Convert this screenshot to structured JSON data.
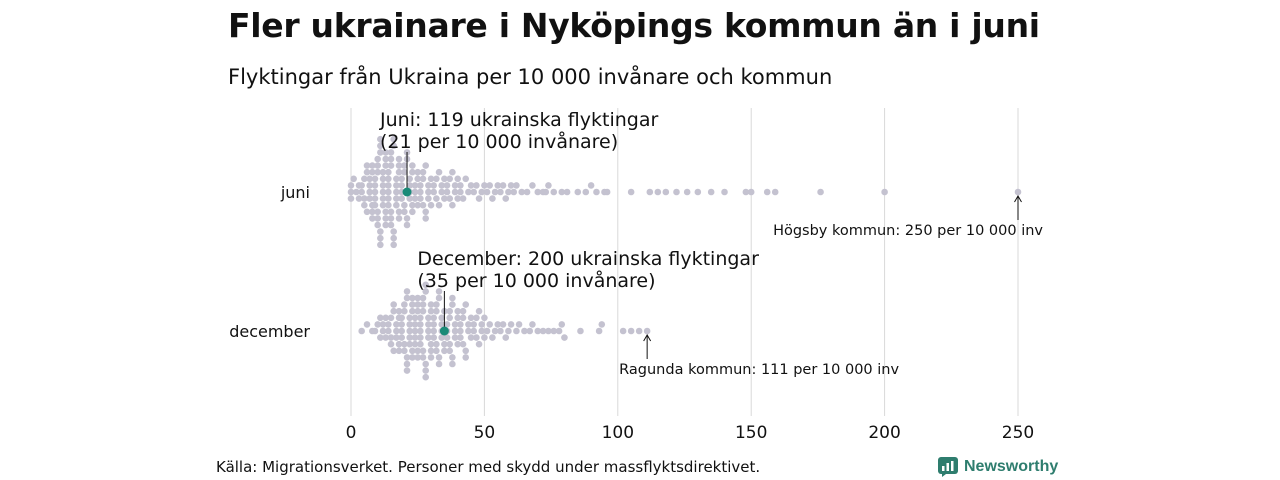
{
  "title": "Fler ukrainare i Nyköpings kommun än i juni",
  "subtitle": "Flyktingar från Ukraina per 10 000 invånare och kommun",
  "footer": "Källa: Migrationsverket. Personer med skydd under massflyktsdirektivet.",
  "brand": {
    "name": "Newsworthy",
    "color": "#2e7d6e"
  },
  "colors": {
    "dot": "#c4c2d0",
    "highlight": "#1a8a78",
    "grid": "#d9d9d9",
    "text": "#111111"
  },
  "chart_data": {
    "type": "scatter",
    "subtype": "beeswarm",
    "xlim": [
      0,
      250
    ],
    "xticks": [
      0,
      50,
      100,
      150,
      200,
      250
    ],
    "grid": "vertical",
    "categories": [
      "juni",
      "december"
    ],
    "series": [
      {
        "name": "juni",
        "highlight": {
          "value": 21,
          "label_line1": "Juni: 119 ukrainska flyktingar",
          "label_line2": "(21 per 10 000 invånare)"
        },
        "max": {
          "value": 250,
          "label": "Högsby kommun: 250 per 10 000 inv"
        },
        "values": [
          0,
          0,
          0,
          1,
          2,
          3,
          3,
          4,
          4,
          5,
          5,
          5,
          6,
          6,
          6,
          7,
          7,
          7,
          7,
          8,
          8,
          8,
          8,
          8,
          9,
          9,
          9,
          9,
          9,
          10,
          10,
          10,
          10,
          10,
          10,
          11,
          11,
          11,
          11,
          11,
          11,
          12,
          12,
          12,
          12,
          12,
          12,
          13,
          13,
          13,
          13,
          13,
          13,
          14,
          14,
          14,
          14,
          14,
          14,
          15,
          15,
          15,
          15,
          15,
          15,
          16,
          16,
          16,
          16,
          16,
          17,
          17,
          17,
          17,
          17,
          18,
          18,
          18,
          18,
          18,
          19,
          19,
          19,
          19,
          20,
          20,
          20,
          20,
          21,
          21,
          21,
          21,
          22,
          22,
          22,
          22,
          23,
          23,
          23,
          23,
          24,
          24,
          24,
          25,
          25,
          25,
          26,
          26,
          26,
          27,
          27,
          27,
          28,
          28,
          28,
          29,
          29,
          29,
          30,
          30,
          31,
          31,
          32,
          32,
          33,
          33,
          34,
          34,
          35,
          35,
          36,
          36,
          37,
          37,
          38,
          38,
          39,
          39,
          40,
          40,
          41,
          41,
          42,
          43,
          44,
          45,
          46,
          47,
          48,
          49,
          50,
          51,
          52,
          53,
          54,
          55,
          56,
          57,
          58,
          59,
          60,
          61,
          62,
          64,
          66,
          68,
          70,
          72,
          74,
          73,
          76,
          79,
          81,
          85,
          88,
          90,
          92,
          95,
          96,
          105,
          112,
          115,
          118,
          122,
          126,
          130,
          135,
          140,
          148,
          150,
          156,
          159,
          176,
          200,
          250
        ]
      },
      {
        "name": "december",
        "highlight": {
          "value": 35,
          "label_line1": "December: 200 ukrainska flyktingar",
          "label_line2": "(35 per 10 000 invånare)"
        },
        "max": {
          "value": 111,
          "label": "Ragunda kommun: 111 per 10 000 inv"
        },
        "values": [
          4,
          6,
          8,
          9,
          10,
          11,
          11,
          12,
          12,
          13,
          13,
          14,
          14,
          15,
          15,
          15,
          16,
          16,
          16,
          17,
          17,
          17,
          18,
          18,
          18,
          18,
          19,
          19,
          19,
          19,
          20,
          20,
          20,
          20,
          21,
          21,
          21,
          21,
          21,
          22,
          22,
          22,
          22,
          22,
          23,
          23,
          23,
          23,
          23,
          24,
          24,
          24,
          24,
          24,
          25,
          25,
          25,
          25,
          25,
          26,
          26,
          26,
          26,
          26,
          27,
          27,
          27,
          27,
          27,
          28,
          28,
          28,
          28,
          28,
          29,
          29,
          29,
          29,
          30,
          30,
          30,
          30,
          30,
          31,
          31,
          31,
          31,
          32,
          32,
          32,
          32,
          33,
          33,
          33,
          33,
          34,
          34,
          34,
          34,
          35,
          35,
          35,
          36,
          36,
          36,
          37,
          37,
          37,
          37,
          38,
          38,
          38,
          38,
          39,
          39,
          39,
          40,
          40,
          40,
          41,
          41,
          41,
          42,
          42,
          42,
          43,
          43,
          43,
          44,
          44,
          45,
          45,
          46,
          46,
          47,
          47,
          48,
          48,
          49,
          49,
          50,
          50,
          51,
          52,
          53,
          54,
          55,
          56,
          57,
          58,
          59,
          60,
          62,
          63,
          65,
          67,
          68,
          70,
          72,
          74,
          76,
          78,
          79,
          80,
          86,
          93,
          94,
          102,
          105,
          108,
          111
        ]
      }
    ]
  }
}
